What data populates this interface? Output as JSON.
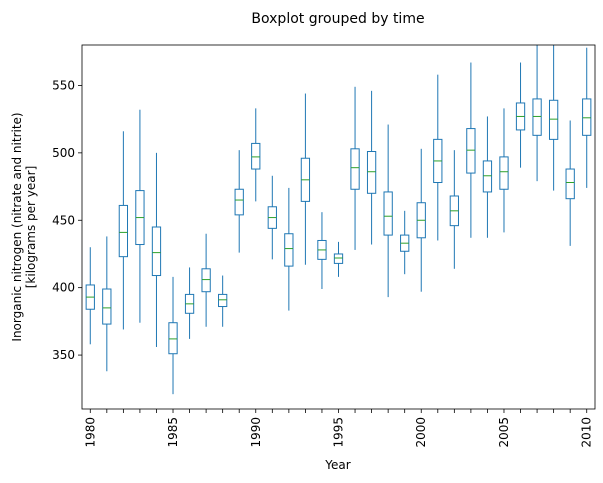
{
  "chart_data": {
    "type": "boxplot",
    "title": "Boxplot grouped by time",
    "xlabel": "Year",
    "ylabel_line1": "Inorganic nitrogen (nitrate and nitrite)",
    "ylabel_line2": "[kilograms per year]",
    "ylim": [
      310,
      580
    ],
    "yticks": [
      350,
      400,
      450,
      500,
      550
    ],
    "x_tick_labels": [
      "1980",
      "1985",
      "1990",
      "1995",
      "2000",
      "2005",
      "2010"
    ],
    "grid": false,
    "colors": {
      "box": "#1f77b4",
      "median": "#2ca02c"
    },
    "boxes": [
      {
        "year": 1980,
        "whisker_low": 358,
        "q1": 384,
        "median": 393,
        "q3": 402,
        "whisker_high": 430
      },
      {
        "year": 1981,
        "whisker_low": 338,
        "q1": 373,
        "median": 385,
        "q3": 399,
        "whisker_high": 438
      },
      {
        "year": 1982,
        "whisker_low": 369,
        "q1": 423,
        "median": 441,
        "q3": 461,
        "whisker_high": 516
      },
      {
        "year": 1983,
        "whisker_low": 374,
        "q1": 432,
        "median": 452,
        "q3": 472,
        "whisker_high": 532
      },
      {
        "year": 1984,
        "whisker_low": 356,
        "q1": 409,
        "median": 426,
        "q3": 445,
        "whisker_high": 500
      },
      {
        "year": 1985,
        "whisker_low": 321,
        "q1": 351,
        "median": 362,
        "q3": 374,
        "whisker_high": 408
      },
      {
        "year": 1986,
        "whisker_low": 362,
        "q1": 381,
        "median": 388,
        "q3": 395,
        "whisker_high": 415
      },
      {
        "year": 1987,
        "whisker_low": 371,
        "q1": 397,
        "median": 406,
        "q3": 414,
        "whisker_high": 440
      },
      {
        "year": 1988,
        "whisker_low": 371,
        "q1": 386,
        "median": 391,
        "q3": 395,
        "whisker_high": 409
      },
      {
        "year": 1989,
        "whisker_low": 426,
        "q1": 454,
        "median": 465,
        "q3": 473,
        "whisker_high": 502
      },
      {
        "year": 1990,
        "whisker_low": 464,
        "q1": 488,
        "median": 497,
        "q3": 507,
        "whisker_high": 533
      },
      {
        "year": 1991,
        "whisker_low": 421,
        "q1": 444,
        "median": 452,
        "q3": 460,
        "whisker_high": 483
      },
      {
        "year": 1992,
        "whisker_low": 383,
        "q1": 416,
        "median": 429,
        "q3": 440,
        "whisker_high": 474
      },
      {
        "year": 1993,
        "whisker_low": 417,
        "q1": 464,
        "median": 480,
        "q3": 496,
        "whisker_high": 544
      },
      {
        "year": 1994,
        "whisker_low": 399,
        "q1": 421,
        "median": 428,
        "q3": 435,
        "whisker_high": 456
      },
      {
        "year": 1995,
        "whisker_low": 408,
        "q1": 418,
        "median": 422,
        "q3": 425,
        "whisker_high": 434
      },
      {
        "year": 1996,
        "whisker_low": 428,
        "q1": 473,
        "median": 489,
        "q3": 503,
        "whisker_high": 549
      },
      {
        "year": 1997,
        "whisker_low": 432,
        "q1": 470,
        "median": 486,
        "q3": 501,
        "whisker_high": 546
      },
      {
        "year": 1998,
        "whisker_low": 393,
        "q1": 439,
        "median": 453,
        "q3": 471,
        "whisker_high": 521
      },
      {
        "year": 1999,
        "whisker_low": 410,
        "q1": 427,
        "median": 433,
        "q3": 439,
        "whisker_high": 457
      },
      {
        "year": 2000,
        "whisker_low": 397,
        "q1": 437,
        "median": 450,
        "q3": 463,
        "whisker_high": 503
      },
      {
        "year": 2001,
        "whisker_low": 435,
        "q1": 478,
        "median": 494,
        "q3": 510,
        "whisker_high": 558
      },
      {
        "year": 2002,
        "whisker_low": 414,
        "q1": 446,
        "median": 457,
        "q3": 468,
        "whisker_high": 502
      },
      {
        "year": 2003,
        "whisker_low": 437,
        "q1": 485,
        "median": 502,
        "q3": 518,
        "whisker_high": 567
      },
      {
        "year": 2004,
        "whisker_low": 437,
        "q1": 471,
        "median": 483,
        "q3": 494,
        "whisker_high": 527
      },
      {
        "year": 2005,
        "whisker_low": 441,
        "q1": 473,
        "median": 486,
        "q3": 497,
        "whisker_high": 533
      },
      {
        "year": 2006,
        "whisker_low": 489,
        "q1": 517,
        "median": 527,
        "q3": 537,
        "whisker_high": 567
      },
      {
        "year": 2007,
        "whisker_low": 479,
        "q1": 513,
        "median": 527,
        "q3": 540,
        "whisker_high": 580
      },
      {
        "year": 2008,
        "whisker_low": 472,
        "q1": 510,
        "median": 525,
        "q3": 539,
        "whisker_high": 580
      },
      {
        "year": 2009,
        "whisker_low": 431,
        "q1": 466,
        "median": 478,
        "q3": 488,
        "whisker_high": 524
      },
      {
        "year": 2010,
        "whisker_low": 474,
        "q1": 513,
        "median": 526,
        "q3": 540,
        "whisker_high": 578
      }
    ]
  }
}
